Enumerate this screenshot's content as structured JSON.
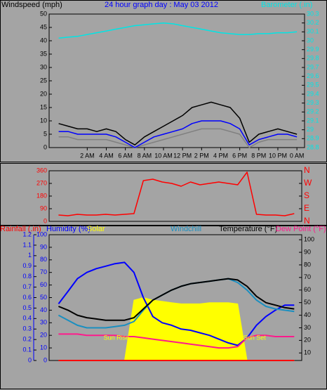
{
  "chart_data": [
    {
      "type": "line",
      "title": "24 hour graph day : May 03 2012",
      "ylabel": "Windspeed (mph)",
      "y2label": "Barometer (.in)",
      "x": [
        -1,
        0,
        1,
        2,
        3,
        4,
        5,
        6,
        7,
        8,
        9,
        10,
        11,
        12,
        13,
        14,
        15,
        16,
        17,
        18,
        19,
        20,
        21,
        22,
        23,
        24
      ],
      "xlim": [
        -2,
        24.8
      ],
      "xticks": [
        {
          "value": 2,
          "label": "2 AM"
        },
        {
          "value": 4,
          "label": "4 AM"
        },
        {
          "value": 6,
          "label": "6 AM"
        },
        {
          "value": 8,
          "label": "8 AM"
        },
        {
          "value": 10,
          "label": "10 AM"
        },
        {
          "value": 12,
          "label": "12 PM"
        },
        {
          "value": 14,
          "label": "2 PM"
        },
        {
          "value": 16,
          "label": "4 PM"
        },
        {
          "value": 18,
          "label": "6 PM"
        },
        {
          "value": 20,
          "label": "8 PM"
        },
        {
          "value": 22,
          "label": "10 PM"
        },
        {
          "value": 24,
          "label": "0 AM"
        }
      ],
      "ylim": [
        0,
        50
      ],
      "yticks": [
        0,
        5,
        10,
        15,
        20,
        25,
        30,
        35,
        40,
        45,
        50
      ],
      "ycolor": "#000000",
      "y2lim": [
        28.8,
        30.3
      ],
      "y2ticks": [
        28.8,
        28.9,
        29,
        29.1,
        29.2,
        29.3,
        29.4,
        29.5,
        29.6,
        29.7,
        29.8,
        29.9,
        30,
        30.1,
        30.2,
        30.3
      ],
      "y2color": "#00e5e5",
      "series": [
        {
          "color": "#808080",
          "values": [
            4,
            4,
            3,
            3,
            3,
            3,
            2,
            1,
            0,
            1,
            2,
            3,
            4,
            5,
            6,
            7,
            7,
            7,
            6,
            5,
            0,
            2,
            3,
            3,
            3,
            3
          ]
        },
        {
          "color": "#000000",
          "values": [
            9,
            8,
            7,
            7,
            6,
            7,
            6,
            3,
            1,
            4,
            6,
            8,
            10,
            12,
            15,
            16,
            17,
            16,
            15,
            11,
            2,
            5,
            6,
            7,
            6,
            5
          ]
        },
        {
          "color": "#0000ff",
          "values": [
            6,
            6,
            5,
            5,
            5,
            5,
            4,
            2,
            0,
            2,
            4,
            5,
            6,
            7,
            9,
            10,
            10,
            10,
            9,
            7,
            1,
            3,
            4,
            5,
            5,
            4
          ]
        },
        {
          "color": "#00e5e5",
          "axis": "y2",
          "values": [
            30.03,
            30.04,
            30.05,
            30.07,
            30.09,
            30.11,
            30.13,
            30.15,
            30.17,
            30.18,
            30.19,
            30.2,
            30.19,
            30.17,
            30.15,
            30.13,
            30.11,
            30.09,
            30.08,
            30.07,
            30.07,
            30.08,
            30.08,
            30.09,
            30.09,
            30.1
          ]
        }
      ]
    },
    {
      "type": "line",
      "x": [
        -1,
        0,
        1,
        2,
        3,
        4,
        5,
        6,
        7,
        8,
        9,
        10,
        11,
        12,
        13,
        14,
        15,
        16,
        17,
        18,
        19,
        20,
        21,
        22,
        23,
        24
      ],
      "xlim": [
        -2,
        24.8
      ],
      "ylim": [
        0,
        360
      ],
      "yticks": [
        0,
        90,
        180,
        270,
        360
      ],
      "ycolor": "#ff0000",
      "y2lim": [
        0,
        360
      ],
      "y2ticks": [
        {
          "value": 360,
          "label": "N"
        },
        {
          "value": 270,
          "label": "W"
        },
        {
          "value": 180,
          "label": "S"
        },
        {
          "value": 90,
          "label": "E"
        },
        {
          "value": 0,
          "label": "N"
        }
      ],
      "y2color": "#ff0000",
      "series": [
        {
          "color": "#ff0000",
          "values": [
            45,
            40,
            50,
            45,
            45,
            50,
            45,
            50,
            55,
            290,
            300,
            280,
            270,
            250,
            280,
            260,
            270,
            280,
            270,
            260,
            350,
            50,
            45,
            45,
            40,
            55
          ]
        }
      ]
    },
    {
      "type": "line",
      "x": [
        -1,
        0,
        1,
        2,
        3,
        4,
        5,
        6,
        7,
        8,
        9,
        10,
        11,
        12,
        13,
        14,
        15,
        16,
        17,
        18,
        19,
        20,
        21,
        22,
        23,
        24
      ],
      "xlim": [
        -2,
        24.8
      ],
      "ylim": [
        0,
        100
      ],
      "yticks": [
        0,
        10,
        20,
        30,
        40,
        50,
        60,
        70,
        80,
        90,
        100
      ],
      "ycolor": "#0000ff",
      "y3lim": [
        0,
        1.2
      ],
      "y3ticks": [
        0,
        0.1,
        0.2,
        0.3,
        0.4,
        0.5,
        0.6,
        0.7,
        0.8,
        0.9,
        1,
        1.1,
        1.2
      ],
      "y3color": "#0000ff",
      "y2lim": [
        4,
        104
      ],
      "y2ticks": [
        10,
        20,
        30,
        40,
        50,
        60,
        70,
        80,
        90,
        100
      ],
      "y2color": "#000000",
      "annotations": [
        {
          "text": "Sun Rise",
          "x": 6.5,
          "anchor": "end"
        },
        {
          "text": "Sun Set",
          "x": 18.6,
          "anchor": "start"
        }
      ],
      "series": [
        {
          "name": "Rainfall (.in)",
          "color": "#ff0000",
          "axis": "y3",
          "values": [
            0,
            0,
            0,
            0,
            0,
            0,
            0,
            0,
            0,
            0,
            0,
            0,
            0,
            0,
            0,
            0,
            0,
            0,
            0,
            0,
            0,
            0,
            0,
            0,
            0,
            0
          ]
        },
        {
          "name": "Humidity (%)",
          "color": "#0000ff",
          "values": [
            45,
            55,
            65,
            70,
            73,
            75,
            77,
            78,
            70,
            50,
            35,
            30,
            28,
            25,
            24,
            22,
            20,
            17,
            14,
            12,
            18,
            28,
            35,
            40,
            44,
            44
          ]
        },
        {
          "name": "Solar",
          "color": "#ffff00",
          "kind": "area",
          "values": [
            0,
            0,
            0,
            0,
            0,
            0,
            0,
            0,
            48,
            50,
            48,
            47,
            46,
            45,
            45,
            45,
            46,
            46,
            46,
            45,
            0,
            0,
            0,
            0,
            0,
            0
          ]
        },
        {
          "name": "Windchill",
          "color": "#1a8fc0",
          "axis": "y2",
          "values": [
            40,
            36,
            32,
            30,
            30,
            30,
            31,
            32,
            35,
            44,
            52,
            56,
            60,
            63,
            65,
            66,
            67,
            68,
            69,
            66,
            60,
            52,
            47,
            45,
            44,
            43
          ]
        },
        {
          "name": "Temperature (°F)",
          "color": "#000000",
          "axis": "y2",
          "values": [
            47,
            44,
            40,
            38,
            37,
            36,
            36,
            36,
            38,
            45,
            52,
            56,
            60,
            63,
            65,
            66,
            67,
            68,
            69,
            68,
            63,
            55,
            50,
            48,
            46,
            45
          ]
        },
        {
          "name": "Dew Point (°F)",
          "color": "#ff1a8c",
          "axis": "y2",
          "values": [
            25,
            25,
            25,
            24,
            24,
            24,
            24,
            23,
            23,
            22,
            21,
            20,
            19,
            18,
            17,
            16,
            15,
            14,
            14,
            15,
            22,
            24,
            24,
            23,
            23,
            23
          ]
        }
      ]
    }
  ]
}
